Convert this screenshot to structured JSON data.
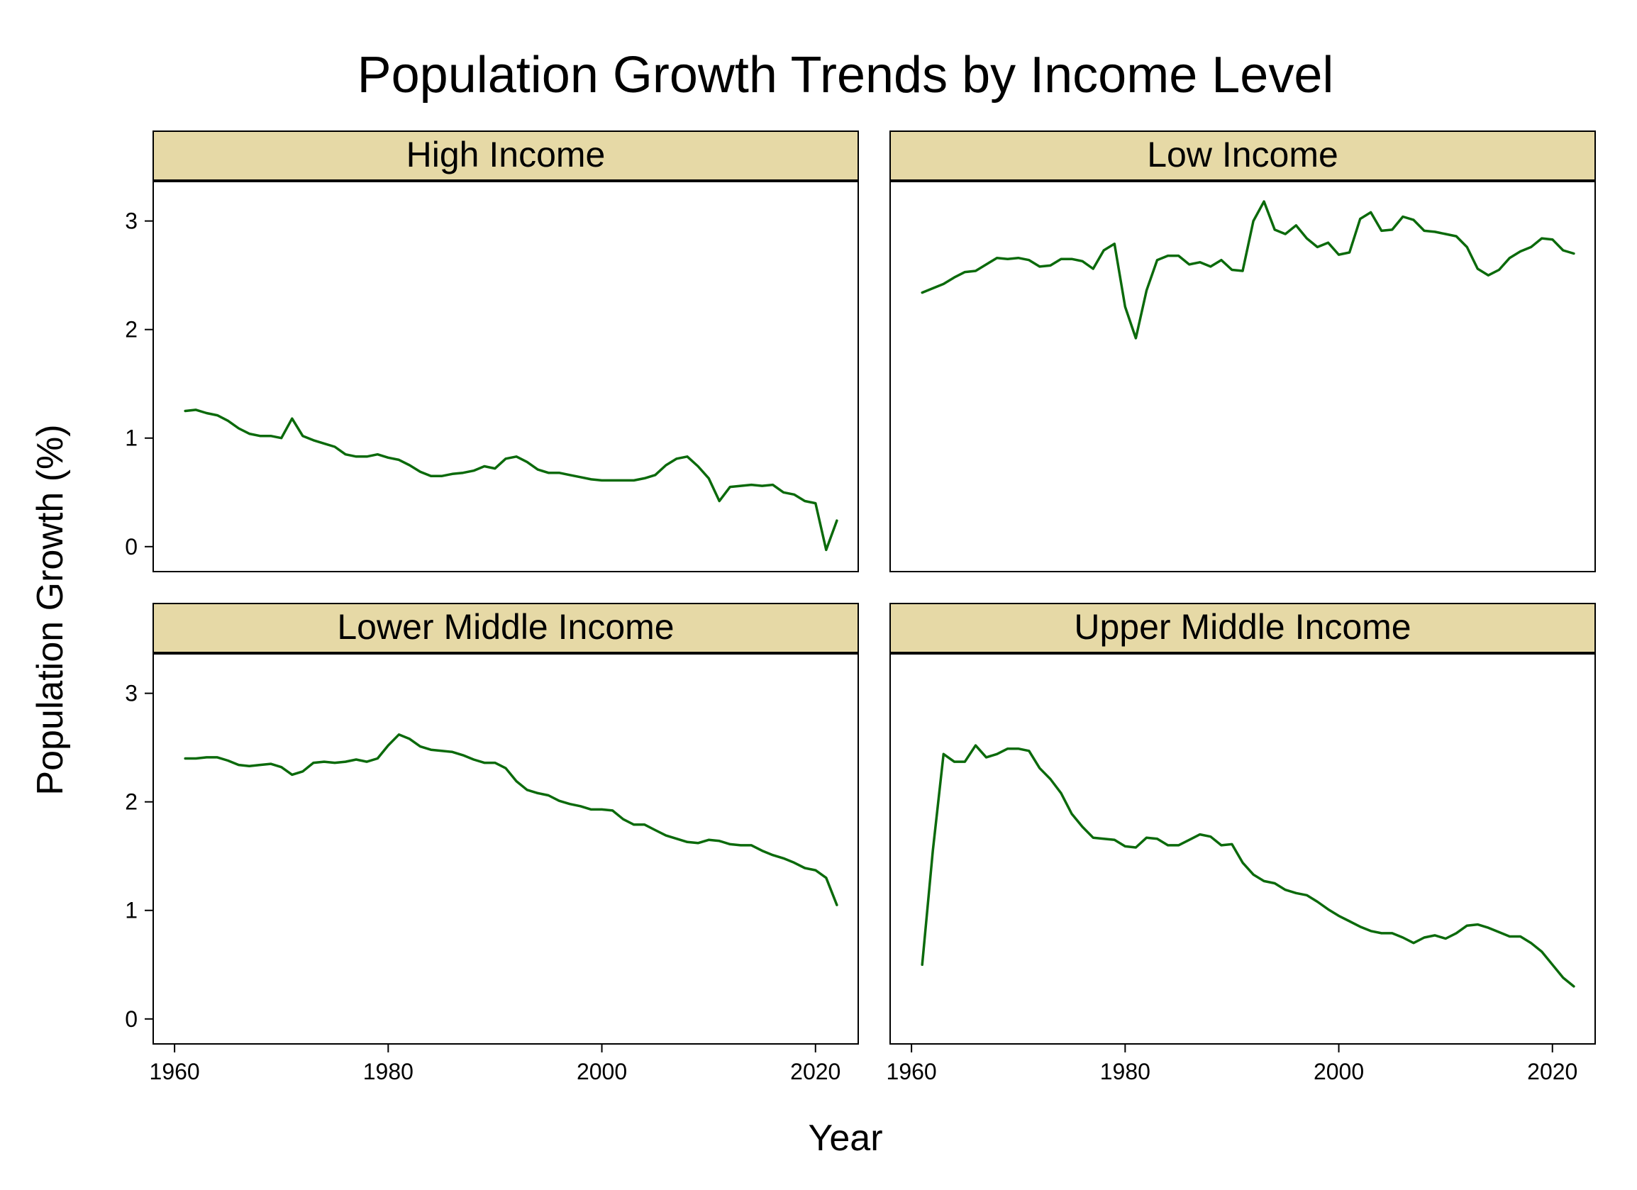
{
  "chart_data": {
    "type": "line",
    "layout": "facet-grid-2x2",
    "title": "Population Growth Trends by Income Level",
    "xlabel": "Year",
    "ylabel": "Population Growth (%)",
    "xlim": [
      1958,
      2024
    ],
    "ylim": [
      -0.23,
      3.37
    ],
    "x_ticks": [
      1960,
      1980,
      2000,
      2020
    ],
    "y_ticks": [
      0,
      1,
      2,
      3
    ],
    "grid": false,
    "line_color": "#0b6a0b",
    "strip_fill": "#e6d9a6",
    "panels": [
      {
        "name": "High Income",
        "x": [
          1961,
          1962,
          1963,
          1964,
          1965,
          1966,
          1967,
          1968,
          1969,
          1970,
          1971,
          1972,
          1973,
          1974,
          1975,
          1976,
          1977,
          1978,
          1979,
          1980,
          1981,
          1982,
          1983,
          1984,
          1985,
          1986,
          1987,
          1988,
          1989,
          1990,
          1991,
          1992,
          1993,
          1994,
          1995,
          1996,
          1997,
          1998,
          1999,
          2000,
          2001,
          2002,
          2003,
          2004,
          2005,
          2006,
          2007,
          2008,
          2009,
          2010,
          2011,
          2012,
          2013,
          2014,
          2015,
          2016,
          2017,
          2018,
          2019,
          2020,
          2021,
          2022
        ],
        "y": [
          1.25,
          1.26,
          1.23,
          1.21,
          1.16,
          1.09,
          1.04,
          1.02,
          1.02,
          1.0,
          1.18,
          1.02,
          0.98,
          0.95,
          0.92,
          0.85,
          0.83,
          0.83,
          0.85,
          0.82,
          0.8,
          0.75,
          0.69,
          0.65,
          0.65,
          0.67,
          0.68,
          0.7,
          0.74,
          0.72,
          0.81,
          0.83,
          0.78,
          0.71,
          0.68,
          0.68,
          0.66,
          0.64,
          0.62,
          0.61,
          0.61,
          0.61,
          0.61,
          0.63,
          0.66,
          0.75,
          0.81,
          0.83,
          0.74,
          0.63,
          0.42,
          0.55,
          0.56,
          0.57,
          0.56,
          0.57,
          0.5,
          0.48,
          0.42,
          0.4,
          -0.03,
          0.24
        ]
      },
      {
        "name": "Low Income",
        "x": [
          1961,
          1962,
          1963,
          1964,
          1965,
          1966,
          1967,
          1968,
          1969,
          1970,
          1971,
          1972,
          1973,
          1974,
          1975,
          1976,
          1977,
          1978,
          1979,
          1980,
          1981,
          1982,
          1983,
          1984,
          1985,
          1986,
          1987,
          1988,
          1989,
          1990,
          1991,
          1992,
          1993,
          1994,
          1995,
          1996,
          1997,
          1998,
          1999,
          2000,
          2001,
          2002,
          2003,
          2004,
          2005,
          2006,
          2007,
          2008,
          2009,
          2010,
          2011,
          2012,
          2013,
          2014,
          2015,
          2016,
          2017,
          2018,
          2019,
          2020,
          2021,
          2022
        ],
        "y": [
          2.34,
          2.38,
          2.42,
          2.48,
          2.53,
          2.54,
          2.6,
          2.66,
          2.65,
          2.66,
          2.64,
          2.58,
          2.59,
          2.65,
          2.65,
          2.63,
          2.56,
          2.73,
          2.79,
          2.21,
          1.92,
          2.36,
          2.64,
          2.68,
          2.68,
          2.6,
          2.62,
          2.58,
          2.64,
          2.55,
          2.54,
          3.0,
          3.18,
          2.92,
          2.88,
          2.96,
          2.84,
          2.76,
          2.8,
          2.69,
          2.71,
          3.02,
          3.08,
          2.91,
          2.92,
          3.04,
          3.01,
          2.91,
          2.9,
          2.88,
          2.86,
          2.76,
          2.56,
          2.5,
          2.55,
          2.66,
          2.72,
          2.76,
          2.84,
          2.83,
          2.73,
          2.7
        ]
      },
      {
        "name": "Lower Middle Income",
        "x": [
          1961,
          1962,
          1963,
          1964,
          1965,
          1966,
          1967,
          1968,
          1969,
          1970,
          1971,
          1972,
          1973,
          1974,
          1975,
          1976,
          1977,
          1978,
          1979,
          1980,
          1981,
          1982,
          1983,
          1984,
          1985,
          1986,
          1987,
          1988,
          1989,
          1990,
          1991,
          1992,
          1993,
          1994,
          1995,
          1996,
          1997,
          1998,
          1999,
          2000,
          2001,
          2002,
          2003,
          2004,
          2005,
          2006,
          2007,
          2008,
          2009,
          2010,
          2011,
          2012,
          2013,
          2014,
          2015,
          2016,
          2017,
          2018,
          2019,
          2020,
          2021,
          2022
        ],
        "y": [
          2.4,
          2.4,
          2.41,
          2.41,
          2.38,
          2.34,
          2.33,
          2.34,
          2.35,
          2.32,
          2.25,
          2.28,
          2.36,
          2.37,
          2.36,
          2.37,
          2.39,
          2.37,
          2.4,
          2.52,
          2.62,
          2.58,
          2.51,
          2.48,
          2.47,
          2.46,
          2.43,
          2.39,
          2.36,
          2.36,
          2.31,
          2.19,
          2.11,
          2.08,
          2.06,
          2.01,
          1.98,
          1.96,
          1.93,
          1.93,
          1.92,
          1.84,
          1.79,
          1.79,
          1.74,
          1.69,
          1.66,
          1.63,
          1.62,
          1.65,
          1.64,
          1.61,
          1.6,
          1.6,
          1.55,
          1.51,
          1.48,
          1.44,
          1.39,
          1.37,
          1.3,
          1.05
        ]
      },
      {
        "name": "Upper Middle Income",
        "x": [
          1961,
          1962,
          1963,
          1964,
          1965,
          1966,
          1967,
          1968,
          1969,
          1970,
          1971,
          1972,
          1973,
          1974,
          1975,
          1976,
          1977,
          1978,
          1979,
          1980,
          1981,
          1982,
          1983,
          1984,
          1985,
          1986,
          1987,
          1988,
          1989,
          1990,
          1991,
          1992,
          1993,
          1994,
          1995,
          1996,
          1997,
          1998,
          1999,
          2000,
          2001,
          2002,
          2003,
          2004,
          2005,
          2006,
          2007,
          2008,
          2009,
          2010,
          2011,
          2012,
          2013,
          2014,
          2015,
          2016,
          2017,
          2018,
          2019,
          2020,
          2021,
          2022
        ],
        "y": [
          0.5,
          1.55,
          2.44,
          2.37,
          2.37,
          2.52,
          2.41,
          2.44,
          2.49,
          2.49,
          2.47,
          2.31,
          2.21,
          2.08,
          1.89,
          1.77,
          1.67,
          1.66,
          1.65,
          1.59,
          1.58,
          1.67,
          1.66,
          1.6,
          1.6,
          1.65,
          1.7,
          1.68,
          1.6,
          1.61,
          1.44,
          1.33,
          1.27,
          1.25,
          1.19,
          1.16,
          1.14,
          1.08,
          1.01,
          0.95,
          0.9,
          0.85,
          0.81,
          0.79,
          0.79,
          0.75,
          0.7,
          0.75,
          0.77,
          0.74,
          0.79,
          0.86,
          0.87,
          0.84,
          0.8,
          0.76,
          0.76,
          0.7,
          0.62,
          0.5,
          0.38,
          0.3
        ]
      }
    ]
  }
}
